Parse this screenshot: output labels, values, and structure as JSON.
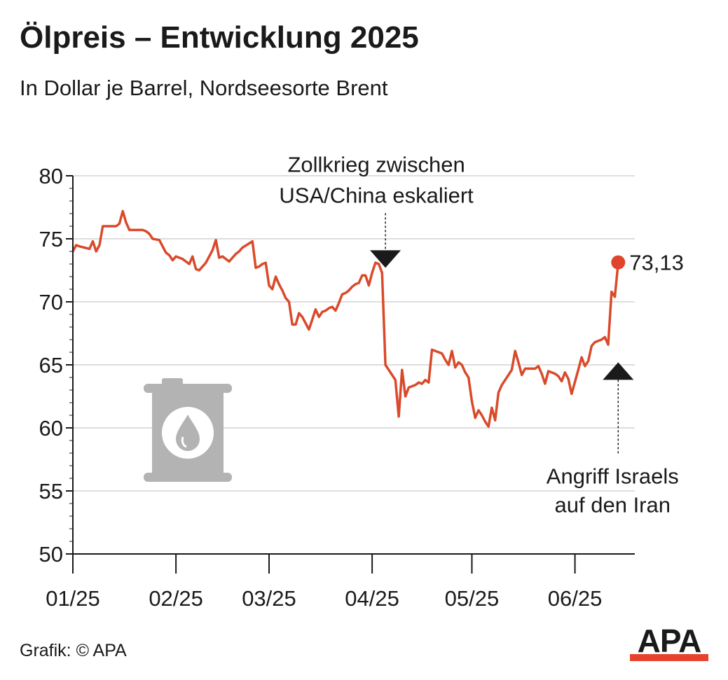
{
  "title": "Ölpreis – Entwicklung 2025",
  "subtitle": "In Dollar je Barrel, Nordseesorte Brent",
  "source": "Grafik: © APA",
  "logo_text": "APA",
  "colors": {
    "line": "#d94a2b",
    "marker": "#e0452b",
    "grid": "#d4d4d4",
    "axis": "#1a1a1a",
    "icon": "#b3b3b3",
    "logo_bar": "#e8412c"
  },
  "icon": "oil-barrel-icon",
  "chart_data": {
    "type": "line",
    "title": "Ölpreis – Entwicklung 2025",
    "subtitle": "In Dollar je Barrel, Nordseesorte Brent",
    "xlabel": "",
    "ylabel": "",
    "ylim": [
      50,
      80
    ],
    "yticks": [
      50,
      55,
      60,
      65,
      70,
      75,
      80
    ],
    "xlim": [
      "2025-01-01",
      "2025-06-19"
    ],
    "xticks": [
      {
        "date": "2025-01-01",
        "label": "01/25"
      },
      {
        "date": "2025-02-01",
        "label": "02/25"
      },
      {
        "date": "2025-03-01",
        "label": "03/25"
      },
      {
        "date": "2025-04-01",
        "label": "04/25"
      },
      {
        "date": "2025-05-01",
        "label": "05/25"
      },
      {
        "date": "2025-06-01",
        "label": "06/25"
      }
    ],
    "grid": true,
    "series": [
      {
        "points": [
          [
            "2025-01-01",
            74.0
          ],
          [
            "2025-01-02",
            74.5
          ],
          [
            "2025-01-03",
            74.4
          ],
          [
            "2025-01-06",
            74.2
          ],
          [
            "2025-01-07",
            74.8
          ],
          [
            "2025-01-08",
            74.0
          ],
          [
            "2025-01-09",
            74.5
          ],
          [
            "2025-01-10",
            76.0
          ],
          [
            "2025-01-13",
            76.0
          ],
          [
            "2025-01-14",
            76.0
          ],
          [
            "2025-01-15",
            76.2
          ],
          [
            "2025-01-16",
            77.2
          ],
          [
            "2025-01-17",
            76.3
          ],
          [
            "2025-01-18",
            75.7
          ],
          [
            "2025-01-21",
            75.7
          ],
          [
            "2025-01-22",
            75.7
          ],
          [
            "2025-01-23",
            75.6
          ],
          [
            "2025-01-24",
            75.4
          ],
          [
            "2025-01-25",
            75.0
          ],
          [
            "2025-01-27",
            74.9
          ],
          [
            "2025-01-28",
            74.4
          ],
          [
            "2025-01-29",
            73.9
          ],
          [
            "2025-01-30",
            73.7
          ],
          [
            "2025-01-31",
            73.3
          ],
          [
            "2025-02-01",
            73.6
          ],
          [
            "2025-02-03",
            73.4
          ],
          [
            "2025-02-04",
            73.2
          ],
          [
            "2025-02-05",
            73.0
          ],
          [
            "2025-02-06",
            73.6
          ],
          [
            "2025-02-07",
            72.6
          ],
          [
            "2025-02-08",
            72.5
          ],
          [
            "2025-02-10",
            73.1
          ],
          [
            "2025-02-11",
            73.6
          ],
          [
            "2025-02-12",
            74.1
          ],
          [
            "2025-02-13",
            74.9
          ],
          [
            "2025-02-14",
            73.5
          ],
          [
            "2025-02-15",
            73.6
          ],
          [
            "2025-02-17",
            73.2
          ],
          [
            "2025-02-18",
            73.5
          ],
          [
            "2025-02-19",
            73.8
          ],
          [
            "2025-02-20",
            74.0
          ],
          [
            "2025-02-21",
            74.3
          ],
          [
            "2025-02-24",
            74.8
          ],
          [
            "2025-02-25",
            72.7
          ],
          [
            "2025-02-26",
            72.8
          ],
          [
            "2025-02-27",
            73.0
          ],
          [
            "2025-02-28",
            73.1
          ],
          [
            "2025-03-01",
            71.3
          ],
          [
            "2025-03-02",
            71.0
          ],
          [
            "2025-03-03",
            72.0
          ],
          [
            "2025-03-04",
            71.4
          ],
          [
            "2025-03-05",
            70.9
          ],
          [
            "2025-03-06",
            70.3
          ],
          [
            "2025-03-07",
            70.0
          ],
          [
            "2025-03-08",
            68.2
          ],
          [
            "2025-03-09",
            68.2
          ],
          [
            "2025-03-10",
            69.1
          ],
          [
            "2025-03-11",
            68.8
          ],
          [
            "2025-03-12",
            68.3
          ],
          [
            "2025-03-13",
            67.8
          ],
          [
            "2025-03-14",
            68.6
          ],
          [
            "2025-03-15",
            69.4
          ],
          [
            "2025-03-16",
            68.8
          ],
          [
            "2025-03-17",
            69.2
          ],
          [
            "2025-03-18",
            69.3
          ],
          [
            "2025-03-19",
            69.5
          ],
          [
            "2025-03-20",
            69.6
          ],
          [
            "2025-03-21",
            69.3
          ],
          [
            "2025-03-22",
            69.9
          ],
          [
            "2025-03-23",
            70.6
          ],
          [
            "2025-03-24",
            70.7
          ],
          [
            "2025-03-25",
            70.9
          ],
          [
            "2025-03-26",
            71.2
          ],
          [
            "2025-03-27",
            71.4
          ],
          [
            "2025-03-28",
            71.5
          ],
          [
            "2025-03-29",
            72.1
          ],
          [
            "2025-03-30",
            72.1
          ],
          [
            "2025-03-31",
            71.3
          ],
          [
            "2025-04-01",
            72.3
          ],
          [
            "2025-04-02",
            73.1
          ],
          [
            "2025-04-03",
            73.0
          ],
          [
            "2025-04-04",
            72.3
          ],
          [
            "2025-04-05",
            65.0
          ],
          [
            "2025-04-06",
            64.6
          ],
          [
            "2025-04-07",
            64.2
          ],
          [
            "2025-04-08",
            63.8
          ],
          [
            "2025-04-09",
            60.9
          ],
          [
            "2025-04-10",
            64.6
          ],
          [
            "2025-04-11",
            62.5
          ],
          [
            "2025-04-12",
            63.2
          ],
          [
            "2025-04-14",
            63.4
          ],
          [
            "2025-04-15",
            63.6
          ],
          [
            "2025-04-16",
            63.5
          ],
          [
            "2025-04-17",
            63.8
          ],
          [
            "2025-04-18",
            63.6
          ],
          [
            "2025-04-19",
            66.2
          ],
          [
            "2025-04-22",
            65.9
          ],
          [
            "2025-04-23",
            65.4
          ],
          [
            "2025-04-24",
            65.0
          ],
          [
            "2025-04-25",
            66.1
          ],
          [
            "2025-04-26",
            64.8
          ],
          [
            "2025-04-27",
            65.2
          ],
          [
            "2025-04-28",
            65.0
          ],
          [
            "2025-04-29",
            64.4
          ],
          [
            "2025-04-30",
            64.0
          ],
          [
            "2025-05-01",
            62.1
          ],
          [
            "2025-05-02",
            60.8
          ],
          [
            "2025-05-03",
            61.4
          ],
          [
            "2025-05-04",
            61.0
          ],
          [
            "2025-05-05",
            60.5
          ],
          [
            "2025-05-06",
            60.1
          ],
          [
            "2025-05-07",
            61.6
          ],
          [
            "2025-05-08",
            60.6
          ],
          [
            "2025-05-09",
            62.8
          ],
          [
            "2025-05-10",
            63.4
          ],
          [
            "2025-05-12",
            64.2
          ],
          [
            "2025-05-13",
            64.6
          ],
          [
            "2025-05-14",
            66.1
          ],
          [
            "2025-05-15",
            65.2
          ],
          [
            "2025-05-16",
            64.2
          ],
          [
            "2025-05-17",
            64.7
          ],
          [
            "2025-05-19",
            64.7
          ],
          [
            "2025-05-20",
            64.7
          ],
          [
            "2025-05-21",
            64.9
          ],
          [
            "2025-05-22",
            64.3
          ],
          [
            "2025-05-23",
            63.5
          ],
          [
            "2025-05-24",
            64.5
          ],
          [
            "2025-05-26",
            64.3
          ],
          [
            "2025-05-27",
            64.1
          ],
          [
            "2025-05-28",
            63.7
          ],
          [
            "2025-05-29",
            64.4
          ],
          [
            "2025-05-30",
            63.9
          ],
          [
            "2025-05-31",
            62.7
          ],
          [
            "2025-06-02",
            64.6
          ],
          [
            "2025-06-03",
            65.6
          ],
          [
            "2025-06-04",
            64.9
          ],
          [
            "2025-06-05",
            65.3
          ],
          [
            "2025-06-06",
            66.5
          ],
          [
            "2025-06-07",
            66.8
          ],
          [
            "2025-06-08",
            66.9
          ],
          [
            "2025-06-09",
            67.0
          ],
          [
            "2025-06-10",
            67.2
          ],
          [
            "2025-06-11",
            66.6
          ],
          [
            "2025-06-12",
            70.8
          ],
          [
            "2025-06-13",
            70.4
          ],
          [
            "2025-06-14",
            73.1
          ]
        ]
      }
    ],
    "end_value": {
      "date": "2025-06-14",
      "value": 73.13,
      "label": "73,13"
    },
    "annotations": [
      {
        "lines": [
          "Zollkrieg zwischen",
          "USA/China eskaliert"
        ],
        "date": "2025-04-05",
        "value": 72.7,
        "direction": "down"
      },
      {
        "lines": [
          "Angriff Israels",
          "auf den Iran"
        ],
        "date": "2025-06-14",
        "value": 65.2,
        "direction": "up"
      }
    ]
  }
}
